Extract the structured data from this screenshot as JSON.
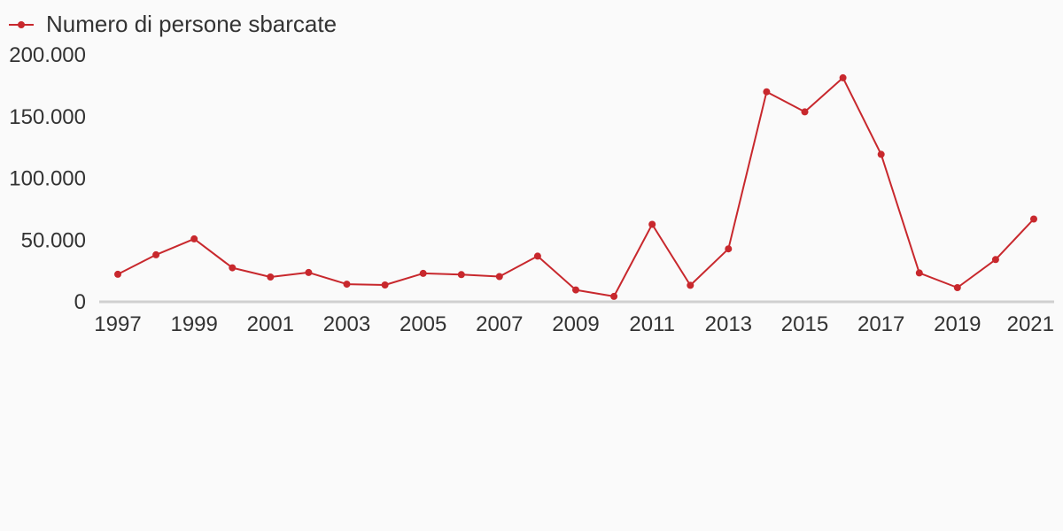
{
  "chart_data": {
    "type": "line",
    "x": [
      1997,
      1998,
      1999,
      2000,
      2001,
      2002,
      2003,
      2004,
      2005,
      2006,
      2007,
      2008,
      2009,
      2010,
      2011,
      2012,
      2013,
      2014,
      2015,
      2016,
      2017,
      2018,
      2019,
      2020,
      2021
    ],
    "series": [
      {
        "name": "Numero di persone sbarcate",
        "color": "#c8282d",
        "values": [
          22300,
          38100,
          51000,
          27500,
          20100,
          23700,
          14300,
          13600,
          23000,
          22000,
          20400,
          37000,
          9600,
          4400,
          62700,
          13300,
          42900,
          170100,
          153800,
          181400,
          119400,
          23400,
          11500,
          34200,
          67000
        ]
      }
    ],
    "x_tick_labels": [
      "1997",
      "1999",
      "2001",
      "2003",
      "2005",
      "2007",
      "2009",
      "2011",
      "2013",
      "2015",
      "2017",
      "2019",
      "2021"
    ],
    "y_tick_labels": [
      "0",
      "50.000",
      "100.000",
      "150.000",
      "200.000"
    ],
    "y_ticks": [
      0,
      50000,
      100000,
      150000,
      200000
    ],
    "ylim": [
      0,
      200000
    ],
    "xlim": [
      1997,
      2021
    ],
    "title": "",
    "xlabel": "",
    "ylabel": "",
    "grid": false,
    "legend_position": "top-left",
    "axis_color": "#d0d0d0",
    "text_color": "#333333",
    "background": "#fafafa"
  }
}
